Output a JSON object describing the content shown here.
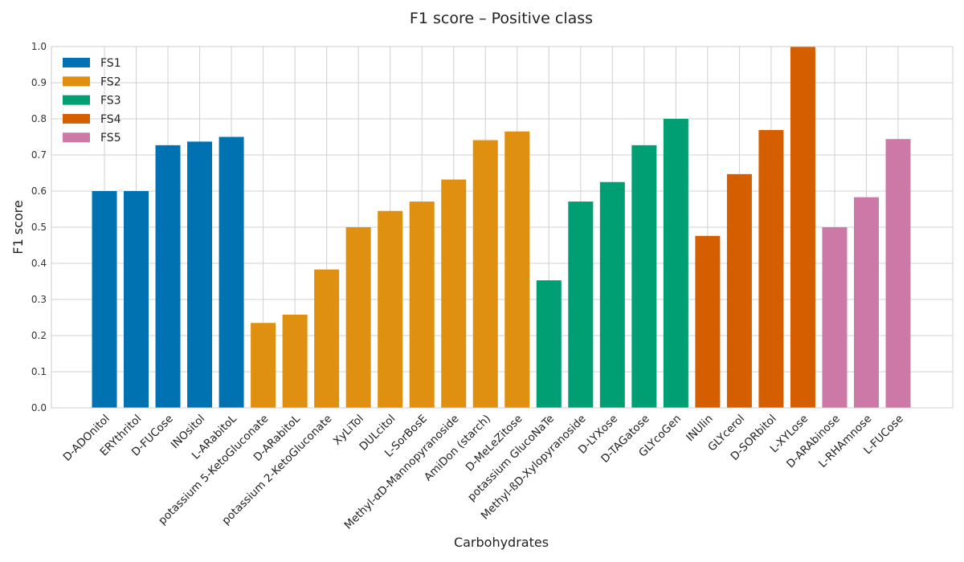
{
  "chart_data": {
    "type": "bar",
    "title": "F1 score – Positive class",
    "xlabel": "Carbohydrates",
    "ylabel": "F1 score",
    "ylim": [
      0,
      1.0
    ],
    "yticks": [
      "0.0",
      "0.1",
      "0.2",
      "0.3",
      "0.4",
      "0.5",
      "0.6",
      "0.7",
      "0.8",
      "0.9",
      "1.0"
    ],
    "grid": true,
    "legend_position": "top-left",
    "series": [
      {
        "name": "FS1",
        "color": "#0072b2",
        "categories": [
          "D-ADOnitol",
          "ERYthritol",
          "D-FUCose",
          "INOsitol",
          "L-ARabitoL"
        ],
        "values": [
          0.6,
          0.6,
          0.727,
          0.737,
          0.75
        ]
      },
      {
        "name": "FS2",
        "color": "#e09010",
        "categories": [
          "potassium 5-KetoGluconate",
          "D-ARabitoL",
          "potassium 2-KetoGluconate",
          "XyLiTol",
          "DULcitol",
          "L-SorBosE",
          "Methyl-αD-Mannopyranoside",
          "AmiDon (starch)",
          "D-MeLeZitose"
        ],
        "values": [
          0.235,
          0.258,
          0.383,
          0.5,
          0.545,
          0.571,
          0.632,
          0.741,
          0.765
        ]
      },
      {
        "name": "FS3",
        "color": "#009e73",
        "categories": [
          "potassium GlucoNaTe",
          "Methyl-ßD-Xylopyranoside",
          "D-LYXose",
          "D-TAGatose",
          "GLYcoGen"
        ],
        "values": [
          0.353,
          0.571,
          0.625,
          0.727,
          0.8
        ]
      },
      {
        "name": "FS4",
        "color": "#d55e00",
        "categories": [
          "INUlin",
          "GLYcerol",
          "D-SORbitol",
          "L-XYLose"
        ],
        "values": [
          0.476,
          0.647,
          0.769,
          1.0
        ]
      },
      {
        "name": "FS5",
        "color": "#cc79a7",
        "categories": [
          "D-ARAbinose",
          "L-RHAmnose",
          "L-FUCose"
        ],
        "values": [
          0.5,
          0.583,
          0.744
        ]
      }
    ]
  }
}
